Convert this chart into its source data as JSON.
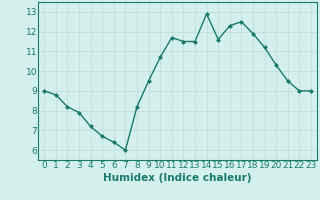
{
  "x": [
    0,
    1,
    2,
    3,
    4,
    5,
    6,
    7,
    8,
    9,
    10,
    11,
    12,
    13,
    14,
    15,
    16,
    17,
    18,
    19,
    20,
    21,
    22,
    23
  ],
  "y": [
    9.0,
    8.8,
    8.2,
    7.9,
    7.2,
    6.7,
    6.4,
    6.0,
    8.2,
    9.5,
    10.7,
    11.7,
    11.5,
    11.5,
    12.9,
    11.6,
    12.3,
    12.5,
    11.9,
    11.2,
    10.3,
    9.5,
    9.0,
    9.0
  ],
  "xlabel": "Humidex (Indice chaleur)",
  "xlim": [
    -0.5,
    23.5
  ],
  "ylim": [
    5.5,
    13.5
  ],
  "yticks": [
    6,
    7,
    8,
    9,
    10,
    11,
    12,
    13
  ],
  "xticks": [
    0,
    1,
    2,
    3,
    4,
    5,
    6,
    7,
    8,
    9,
    10,
    11,
    12,
    13,
    14,
    15,
    16,
    17,
    18,
    19,
    20,
    21,
    22,
    23
  ],
  "line_color": "#1a7a6e",
  "marker": "D",
  "marker_size": 2.0,
  "bg_color": "#d4f0ec",
  "grid_color": "#c0ddd9",
  "xlabel_fontsize": 7.5,
  "tick_fontsize": 6.5,
  "line_width": 1.0
}
